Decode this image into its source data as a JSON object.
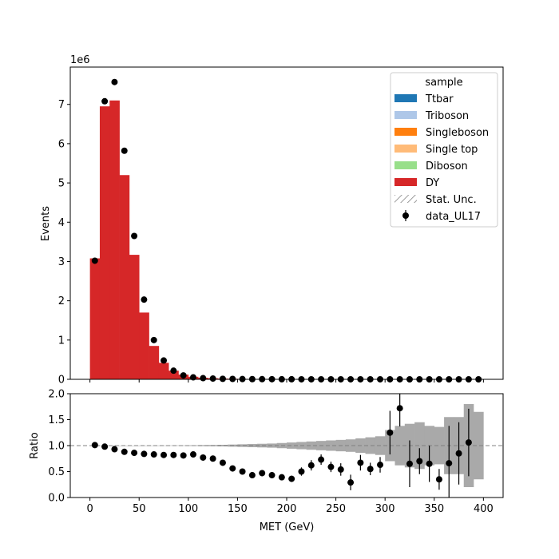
{
  "chart_data": [
    {
      "type": "bar",
      "subtype": "stacked-histogram-with-data-points",
      "xlabel": "",
      "ylabel": "Events",
      "scale_label": "1e6",
      "xlim": [
        -20,
        420
      ],
      "ylim": [
        0,
        7.95
      ],
      "xticks": [
        "0",
        "50",
        "100",
        "150",
        "200",
        "250",
        "300",
        "350",
        "400"
      ],
      "yticks": [
        "0",
        "1",
        "2",
        "3",
        "4",
        "5",
        "6",
        "7"
      ],
      "legend": {
        "title": "sample",
        "position": "top-right",
        "entries": [
          {
            "name": "Ttbar",
            "color": "#1f77b4",
            "kind": "patch"
          },
          {
            "name": "Triboson",
            "color": "#aec7e8",
            "kind": "patch"
          },
          {
            "name": "Singleboson",
            "color": "#ff7f0e",
            "kind": "patch"
          },
          {
            "name": "Single top",
            "color": "#ffbb78",
            "kind": "patch"
          },
          {
            "name": "Diboson",
            "color": "#98df8a",
            "kind": "patch"
          },
          {
            "name": "DY",
            "color": "#d62728",
            "kind": "patch"
          },
          {
            "name": "Stat. Unc.",
            "color": "#7f7f7f",
            "kind": "hatch"
          },
          {
            "name": "data_UL17",
            "color": "#000000",
            "kind": "errorbar"
          }
        ]
      },
      "bin_edges": [
        0,
        10,
        20,
        30,
        40,
        50,
        60,
        70,
        80,
        90,
        100,
        110,
        120,
        130,
        140,
        150,
        160,
        170,
        180,
        190,
        200,
        210,
        220,
        230,
        240,
        250,
        260,
        270,
        280,
        290,
        300,
        310,
        320,
        330,
        340,
        350,
        360,
        370,
        380,
        390,
        400
      ],
      "series": [
        {
          "name": "DY",
          "color": "#d62728",
          "values": [
            3.08,
            6.95,
            7.1,
            5.2,
            3.17,
            1.7,
            0.85,
            0.42,
            0.22,
            0.12,
            0.065,
            0.04,
            0.028,
            0.02,
            0.015,
            0.011,
            0.008,
            0.006,
            0.005,
            0.004,
            0.003,
            0.0025,
            0.002,
            0.0017,
            0.0014,
            0.0012,
            0.001,
            0.0009,
            0.0008,
            0.0007,
            0.0006,
            0.0005,
            0.0005,
            0.0004,
            0.0004,
            0.0003,
            0.0003,
            0.0003,
            0.0002,
            0.0002
          ]
        }
      ],
      "data_points": {
        "name": "data_UL17",
        "x": [
          5,
          15,
          25,
          35,
          45,
          55,
          65,
          75,
          85,
          95,
          105,
          115,
          125,
          135,
          145,
          155,
          165,
          175,
          185,
          195,
          205,
          215,
          225,
          235,
          245,
          255,
          265,
          275,
          285,
          295,
          305,
          315,
          325,
          335,
          345,
          355,
          365,
          375,
          385,
          395
        ],
        "y": [
          3.02,
          7.08,
          7.57,
          5.82,
          3.65,
          2.03,
          1.0,
          0.48,
          0.22,
          0.1,
          0.05,
          0.03,
          0.02,
          0.013,
          0.01,
          0.007,
          0.005,
          0.004,
          0.003,
          0.002,
          0.0015,
          0.0012,
          0.001,
          0.001,
          0.0008,
          0.0006,
          0.0004,
          0.0005,
          0.0004,
          0.0004,
          0.0006,
          0.0008,
          0.0003,
          0.0003,
          0.0003,
          0.0001,
          0.0002,
          0.0003,
          0.0002,
          0.0
        ]
      }
    },
    {
      "type": "scatter",
      "subtype": "ratio-panel",
      "xlabel": "MET (GeV)",
      "ylabel": "Ratio",
      "xlim": [
        -20,
        420
      ],
      "ylim": [
        0,
        2.0
      ],
      "xticks": [
        "0",
        "50",
        "100",
        "150",
        "200",
        "250",
        "300",
        "350",
        "400"
      ],
      "yticks": [
        "0.0",
        "0.5",
        "1.0",
        "1.5",
        "2.0"
      ],
      "reference_line": 1.0,
      "bin_edges": [
        0,
        10,
        20,
        30,
        40,
        50,
        60,
        70,
        80,
        90,
        100,
        110,
        120,
        130,
        140,
        150,
        160,
        170,
        180,
        190,
        200,
        210,
        220,
        230,
        240,
        250,
        260,
        270,
        280,
        290,
        300,
        310,
        320,
        330,
        340,
        350,
        360,
        370,
        380,
        390,
        400
      ],
      "stat_unc_halfwidth": [
        0.001,
        0.001,
        0.001,
        0.001,
        0.001,
        0.002,
        0.002,
        0.003,
        0.004,
        0.005,
        0.007,
        0.01,
        0.012,
        0.015,
        0.02,
        0.025,
        0.03,
        0.035,
        0.04,
        0.05,
        0.06,
        0.07,
        0.08,
        0.09,
        0.1,
        0.11,
        0.12,
        0.14,
        0.16,
        0.18,
        0.3,
        0.38,
        0.42,
        0.45,
        0.38,
        0.36,
        0.55,
        0.55,
        0.8,
        0.65
      ],
      "points": {
        "x": [
          5,
          15,
          25,
          35,
          45,
          55,
          65,
          75,
          85,
          95,
          105,
          115,
          125,
          135,
          145,
          155,
          165,
          175,
          185,
          195,
          205,
          215,
          225,
          235,
          245,
          255,
          265,
          275,
          285,
          295,
          305,
          315,
          325,
          335,
          345,
          355,
          365,
          375,
          385
        ],
        "y": [
          1.01,
          0.98,
          0.93,
          0.88,
          0.86,
          0.84,
          0.83,
          0.82,
          0.82,
          0.81,
          0.83,
          0.77,
          0.75,
          0.67,
          0.56,
          0.5,
          0.43,
          0.47,
          0.43,
          0.39,
          0.36,
          0.5,
          0.62,
          0.73,
          0.59,
          0.54,
          0.29,
          0.67,
          0.55,
          0.63,
          1.25,
          1.72,
          0.65,
          0.7,
          0.65,
          0.35,
          0.66,
          0.85,
          1.06
        ],
        "err": [
          0.005,
          0.005,
          0.005,
          0.005,
          0.005,
          0.005,
          0.005,
          0.005,
          0.01,
          0.01,
          0.02,
          0.03,
          0.03,
          0.03,
          0.04,
          0.05,
          0.05,
          0.06,
          0.05,
          0.05,
          0.06,
          0.08,
          0.1,
          0.1,
          0.1,
          0.12,
          0.15,
          0.15,
          0.12,
          0.15,
          0.42,
          0.35,
          0.45,
          0.25,
          0.35,
          0.2,
          0.72,
          0.6,
          0.65
        ]
      }
    }
  ]
}
